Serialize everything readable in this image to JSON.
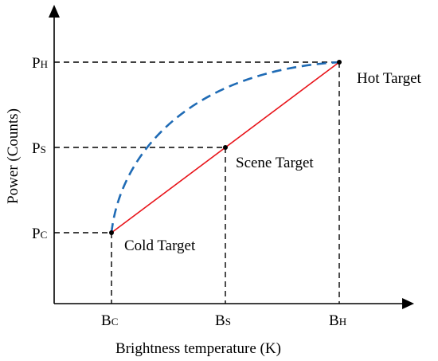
{
  "diagram": {
    "axes": {
      "x_title": "Brightness temperature (K)",
      "y_title": "Power (Counts)"
    },
    "x_ticks": [
      {
        "id": "bc",
        "main": "B",
        "sub": "C"
      },
      {
        "id": "bs",
        "main": "B",
        "sub": "S"
      },
      {
        "id": "bh",
        "main": "B",
        "sub": "H"
      }
    ],
    "y_ticks": [
      {
        "id": "ph",
        "main": "P",
        "sub": "H"
      },
      {
        "id": "ps",
        "main": "P",
        "sub": "S"
      },
      {
        "id": "pc",
        "main": "P",
        "sub": "C"
      }
    ],
    "points": [
      {
        "id": "cold",
        "label": "Cold Target"
      },
      {
        "id": "scene",
        "label": "Scene Target"
      },
      {
        "id": "hot",
        "label": "Hot Target"
      }
    ],
    "colors": {
      "axis": "#000000",
      "linear": "#e8141a",
      "curve": "#1f6bb5",
      "guide": "#000000"
    }
  }
}
